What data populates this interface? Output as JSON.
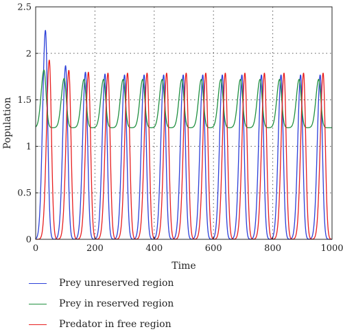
{
  "chart_data": {
    "type": "line",
    "title": "",
    "xlabel": "Time",
    "ylabel": "Population",
    "xlim": [
      0,
      1000
    ],
    "ylim": [
      0,
      2.5
    ],
    "xticks": [
      0,
      200,
      400,
      600,
      800,
      1000
    ],
    "yticks": [
      0,
      0.5,
      1,
      1.5,
      2,
      2.5
    ],
    "xtick_labels": [
      "0",
      "200",
      "400",
      "600",
      "800",
      "1000"
    ],
    "ytick_labels": [
      "0",
      "0.5",
      "1",
      "1.5",
      "2",
      "2.5"
    ],
    "grid": "dotted",
    "legend_position": "below",
    "period": 66,
    "series": [
      {
        "name": "Prey unreserved region",
        "color": "#2b3fd8",
        "peaks": [
          {
            "t": 33,
            "y": 2.25
          },
          {
            "t": 101,
            "y": 1.87
          },
          {
            "t": 168,
            "y": 1.8
          },
          {
            "t": 234,
            "y": 1.78
          },
          {
            "t": 300,
            "y": 1.77
          },
          {
            "t": 366,
            "y": 1.77
          },
          {
            "t": 432,
            "y": 1.77
          },
          {
            "t": 498,
            "y": 1.77
          },
          {
            "t": 564,
            "y": 1.77
          },
          {
            "t": 630,
            "y": 1.77
          },
          {
            "t": 696,
            "y": 1.77
          },
          {
            "t": 762,
            "y": 1.77
          },
          {
            "t": 828,
            "y": 1.77
          },
          {
            "t": 894,
            "y": 1.77
          },
          {
            "t": 960,
            "y": 1.77
          }
        ],
        "baseline": 0.0
      },
      {
        "name": "Prey in reserved region",
        "color": "#1f8f3f",
        "peaks": [
          {
            "t": 28,
            "y": 1.82
          },
          {
            "t": 96,
            "y": 1.73
          },
          {
            "t": 163,
            "y": 1.72
          },
          {
            "t": 229,
            "y": 1.72
          },
          {
            "t": 295,
            "y": 1.72
          },
          {
            "t": 361,
            "y": 1.72
          },
          {
            "t": 427,
            "y": 1.72
          },
          {
            "t": 493,
            "y": 1.72
          },
          {
            "t": 559,
            "y": 1.72
          },
          {
            "t": 625,
            "y": 1.72
          },
          {
            "t": 691,
            "y": 1.72
          },
          {
            "t": 757,
            "y": 1.72
          },
          {
            "t": 823,
            "y": 1.72
          },
          {
            "t": 889,
            "y": 1.72
          },
          {
            "t": 955,
            "y": 1.72
          }
        ],
        "baseline": 1.2
      },
      {
        "name": "Predator in free region",
        "color": "#e81d1d",
        "peaks": [
          {
            "t": 46,
            "y": 1.93
          },
          {
            "t": 112,
            "y": 1.82
          },
          {
            "t": 178,
            "y": 1.8
          },
          {
            "t": 244,
            "y": 1.79
          },
          {
            "t": 310,
            "y": 1.79
          },
          {
            "t": 376,
            "y": 1.79
          },
          {
            "t": 442,
            "y": 1.79
          },
          {
            "t": 508,
            "y": 1.79
          },
          {
            "t": 574,
            "y": 1.79
          },
          {
            "t": 640,
            "y": 1.79
          },
          {
            "t": 706,
            "y": 1.79
          },
          {
            "t": 772,
            "y": 1.79
          },
          {
            "t": 838,
            "y": 1.79
          },
          {
            "t": 904,
            "y": 1.79
          },
          {
            "t": 970,
            "y": 1.79
          }
        ],
        "baseline": 0.0
      }
    ]
  },
  "legend": {
    "items": [
      {
        "label": "Prey unreserved region",
        "color": "#2b3fd8"
      },
      {
        "label": "Prey in reserved region",
        "color": "#1f8f3f"
      },
      {
        "label": "Predator in free region",
        "color": "#e81d1d"
      }
    ]
  }
}
